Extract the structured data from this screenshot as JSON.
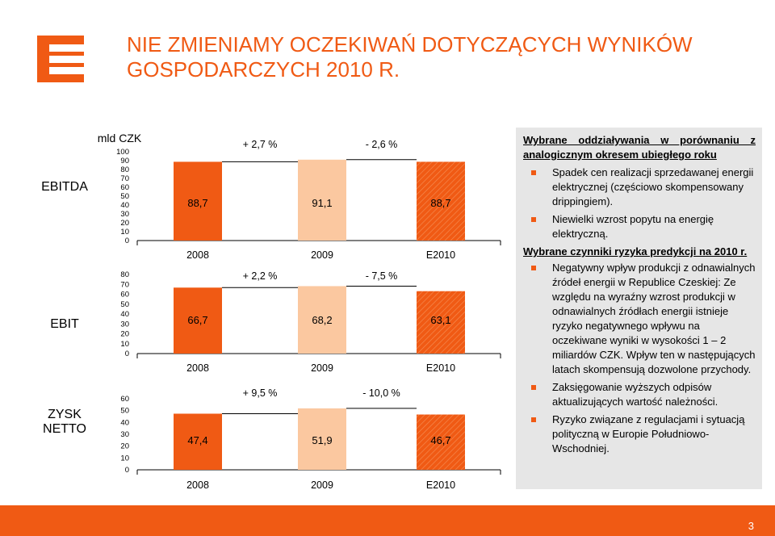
{
  "slide": {
    "title_line1": "NIE ZMIENIAMY OCZEKIWAŃ DOTYCZĄCYCH WYNIKÓW",
    "title_line2": "GOSPODARCZYCH 2010 R.",
    "logo_icon": "cez-logo-icon",
    "unit_label": "mld CZK",
    "page_number": "3",
    "colors": {
      "accent": "#f05a14",
      "bar_2009": "#fbc8a0",
      "panel": "#e6e6e6"
    }
  },
  "chart_data": [
    {
      "type": "bar",
      "title": "EBITDA",
      "categories": [
        "2008",
        "2009",
        "E2010"
      ],
      "values": [
        88.7,
        91.1,
        88.7
      ],
      "value_labels": [
        "88,7",
        "91,1",
        "88,7"
      ],
      "changes": [
        "+ 2,7 %",
        "- 2,6 %"
      ],
      "yticks": [
        "100",
        "90",
        "80",
        "70",
        "60",
        "50",
        "40",
        "30",
        "20",
        "10",
        "0"
      ],
      "ylim": [
        0,
        100
      ],
      "grid": false
    },
    {
      "type": "bar",
      "title": "EBIT",
      "categories": [
        "2008",
        "2009",
        "E2010"
      ],
      "values": [
        66.7,
        68.2,
        63.1
      ],
      "value_labels": [
        "66,7",
        "68,2",
        "63,1"
      ],
      "changes": [
        "+ 2,2 %",
        "- 7,5 %"
      ],
      "yticks": [
        "80",
        "70",
        "60",
        "50",
        "40",
        "30",
        "20",
        "10",
        "0"
      ],
      "ylim": [
        0,
        80
      ],
      "grid": false
    },
    {
      "type": "bar",
      "title": "ZYSK NETTO",
      "categories": [
        "2008",
        "2009",
        "E2010"
      ],
      "values": [
        47.4,
        51.9,
        46.7
      ],
      "value_labels": [
        "47,4",
        "51,9",
        "46,7"
      ],
      "changes": [
        "+ 9,5 %",
        "- 10,0 %"
      ],
      "yticks": [
        "60",
        "50",
        "40",
        "30",
        "20",
        "10",
        "0"
      ],
      "ylim": [
        0,
        60
      ],
      "grid": false
    }
  ],
  "panel": {
    "heading1": "Wybrane oddziaływania w porównaniu z analogicznym okresem ubiegłego roku",
    "bullets1": [
      "Spadek cen realizacji sprzedawanej energii elektrycznej (częściowo skompensowany drippingiem).",
      "Niewielki wzrost popytu na energię elektryczną."
    ],
    "heading2": "Wybrane czynniki ryzyka predykcji na 2010 r.",
    "bullets2": [
      "Negatywny wpływ produkcji z odnawialnych źródeł energii w Republice Czeskiej: Ze względu na wyraźny wzrost produkcji w odnawialnych źródłach energii istnieje ryzyko negatywnego wpływu na oczekiwane wyniki w wysokości 1 – 2 miliardów CZK. Wpływ ten w następujących latach skompensują dozwolone przychody.",
      "Zaksięgowanie wyższych odpisów aktualizujących wartość należności.",
      "Ryzyko związane z regulacjami i sytuacją polityczną w Europie Południowo-Wschodniej."
    ]
  }
}
